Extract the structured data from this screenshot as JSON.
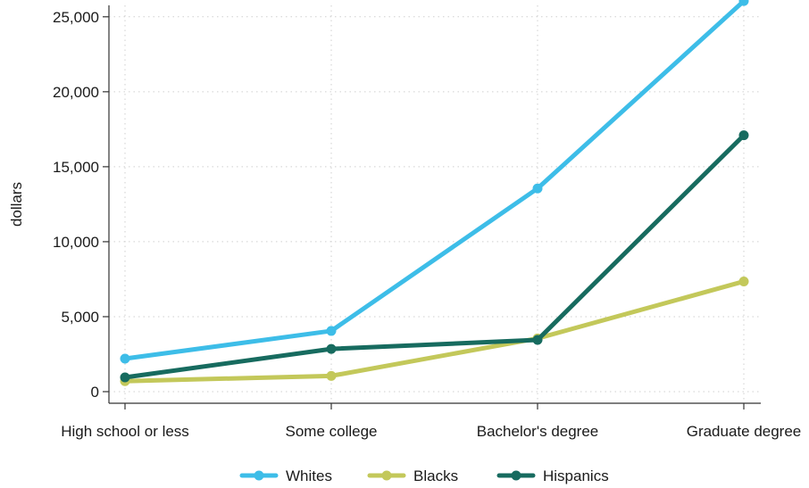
{
  "chart_data": {
    "type": "line",
    "title": "",
    "xlabel": "",
    "ylabel": "dollars",
    "categories": [
      "High school or less",
      "Some college",
      "Bachelor's degree",
      "Graduate degree"
    ],
    "ylim": [
      0,
      26000
    ],
    "yticks": [
      0,
      5000,
      10000,
      15000,
      20000,
      25000
    ],
    "ytick_labels": [
      "0",
      "5,000",
      "10,000",
      "15,000",
      "20,000",
      "25,000"
    ],
    "grid": true,
    "legend_position": "bottom",
    "series": [
      {
        "name": "Whites",
        "color": "#3dbde8",
        "values": [
          2200,
          4050,
          13550,
          26050
        ]
      },
      {
        "name": "Blacks",
        "color": "#c3c85a",
        "values": [
          700,
          1050,
          3550,
          7350
        ]
      },
      {
        "name": "Hispanics",
        "color": "#176b5f",
        "values": [
          950,
          2850,
          3450,
          17100
        ]
      }
    ]
  }
}
